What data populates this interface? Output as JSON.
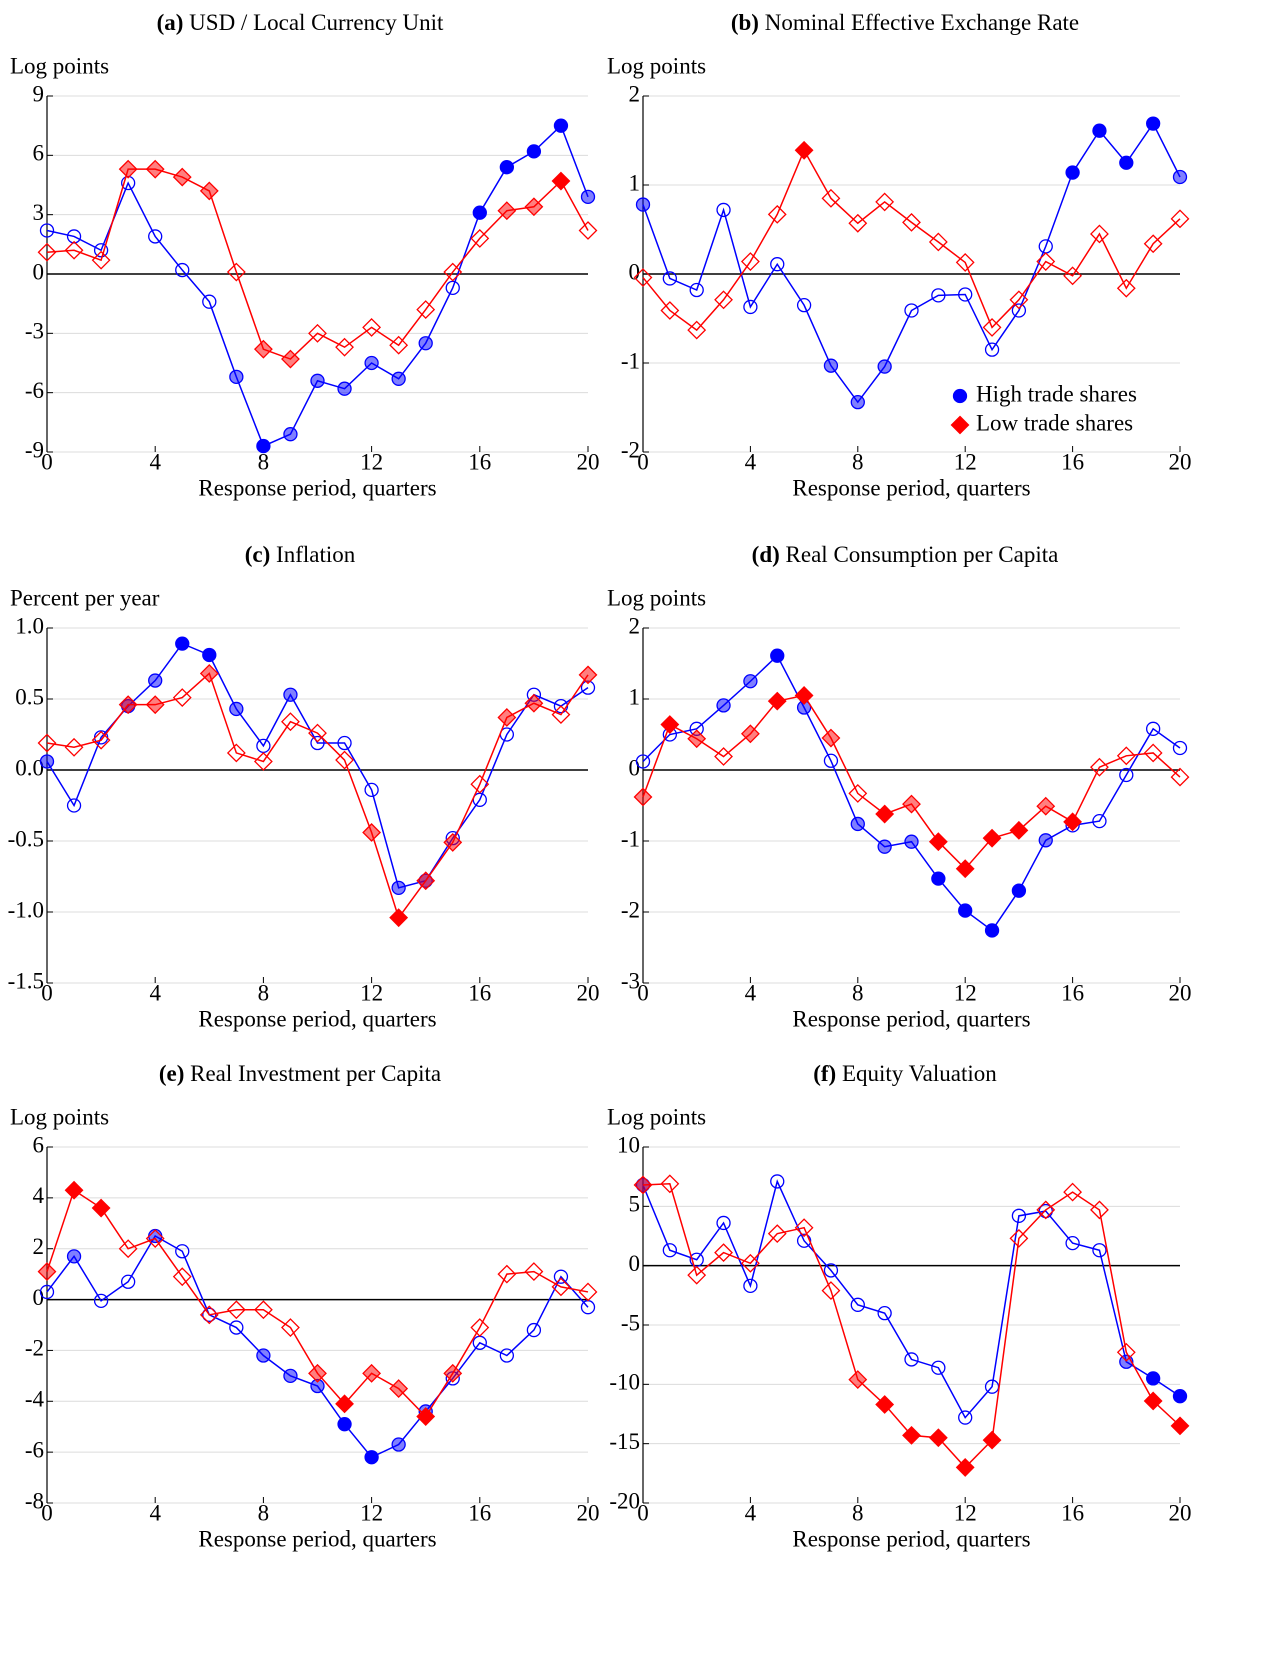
{
  "chart_data": [
    {
      "type": "line",
      "label": "(a)",
      "title": "USD / Local Currency Unit",
      "y_label": "Log points",
      "x_label": "Response period, quarters",
      "x": [
        0,
        1,
        2,
        3,
        4,
        5,
        6,
        7,
        8,
        9,
        10,
        11,
        12,
        13,
        14,
        15,
        16,
        17,
        18,
        19,
        20
      ],
      "xlim": [
        0,
        20
      ],
      "xticks": [
        0,
        4,
        8,
        12,
        16,
        20
      ],
      "ylim": [
        -9,
        9
      ],
      "yticks": [
        9,
        6,
        3,
        0,
        -3,
        -6,
        -9
      ],
      "grid": true,
      "series": [
        {
          "color": "#0000ff",
          "marker": "circle",
          "values": [
            2.2,
            1.9,
            1.2,
            4.6,
            1.9,
            0.2,
            -1.4,
            -5.2,
            -8.7,
            -8.1,
            -5.4,
            -5.8,
            -4.5,
            -5.3,
            -3.5,
            -0.7,
            3.1,
            5.4,
            6.2,
            7.5,
            3.9
          ],
          "marker_opacity": [
            0,
            0,
            0,
            0,
            0,
            0,
            0,
            0.5,
            1,
            0.5,
            0.5,
            0.5,
            0.5,
            0.5,
            0.5,
            0,
            1,
            1,
            1,
            1,
            0.5
          ]
        },
        {
          "color": "#ff0000",
          "marker": "diamond",
          "values": [
            1.1,
            1.2,
            0.7,
            5.3,
            5.3,
            4.9,
            4.2,
            0.1,
            -3.8,
            -4.3,
            -3.0,
            -3.7,
            -2.7,
            -3.6,
            -1.8,
            0.1,
            1.8,
            3.2,
            3.4,
            4.7,
            2.2
          ],
          "marker_opacity": [
            0,
            0,
            0,
            0.5,
            0.5,
            0.5,
            0.5,
            0,
            0.5,
            0.5,
            0,
            0,
            0,
            0,
            0,
            0,
            0,
            0.5,
            0.5,
            1,
            0
          ]
        }
      ]
    },
    {
      "type": "line",
      "label": "(b)",
      "title": "Nominal Effective Exchange Rate",
      "y_label": "Log points",
      "x_label": "Response period, quarters",
      "x": [
        0,
        1,
        2,
        3,
        4,
        5,
        6,
        7,
        8,
        9,
        10,
        11,
        12,
        13,
        14,
        15,
        16,
        17,
        18,
        19,
        20
      ],
      "xlim": [
        0,
        20
      ],
      "xticks": [
        0,
        4,
        8,
        12,
        16,
        20
      ],
      "ylim": [
        -2,
        2
      ],
      "yticks": [
        2,
        1,
        0,
        -1,
        -2
      ],
      "grid": true,
      "legend": "lower right",
      "series": [
        {
          "name": "High trade shares",
          "color": "#0000ff",
          "marker": "circle",
          "values": [
            0.78,
            -0.05,
            -0.18,
            0.72,
            -0.37,
            0.11,
            -0.35,
            -1.03,
            -1.44,
            -1.04,
            -0.41,
            -0.24,
            -0.23,
            -0.85,
            -0.41,
            0.31,
            1.14,
            1.61,
            1.25,
            1.69,
            1.09
          ],
          "marker_opacity": [
            0.5,
            0,
            0,
            0,
            0,
            0,
            0,
            0.5,
            0.5,
            0.5,
            0,
            0,
            0,
            0,
            0,
            0,
            1,
            1,
            1,
            1,
            0.5
          ]
        },
        {
          "name": "Low trade shares",
          "color": "#ff0000",
          "marker": "diamond",
          "values": [
            -0.04,
            -0.41,
            -0.63,
            -0.29,
            0.14,
            0.67,
            1.39,
            0.85,
            0.57,
            0.81,
            0.58,
            0.36,
            0.13,
            -0.6,
            -0.29,
            0.14,
            -0.02,
            0.45,
            -0.16,
            0.34,
            0.62
          ],
          "marker_opacity": [
            0,
            0,
            0,
            0,
            0,
            0,
            1,
            0,
            0,
            0,
            0,
            0,
            0,
            0,
            0,
            0,
            0,
            0,
            0,
            0,
            0
          ]
        }
      ]
    },
    {
      "type": "line",
      "label": "(c)",
      "title": "Inflation",
      "y_label": "Percent per year",
      "x_label": "Response period, quarters",
      "x": [
        0,
        1,
        2,
        3,
        4,
        5,
        6,
        7,
        8,
        9,
        10,
        11,
        12,
        13,
        14,
        15,
        16,
        17,
        18,
        19,
        20
      ],
      "xlim": [
        0,
        20
      ],
      "xticks": [
        0,
        4,
        8,
        12,
        16,
        20
      ],
      "ylim": [
        -1.5,
        1
      ],
      "yticks": [
        {
          "value": 1,
          "label": "1.0"
        },
        0.5,
        {
          "value": 0,
          "label": "0.0"
        },
        -0.5,
        {
          "value": -1,
          "label": "-1.0"
        },
        -1.5
      ],
      "grid": true,
      "series": [
        {
          "color": "#0000ff",
          "marker": "circle",
          "values": [
            0.06,
            -0.25,
            0.23,
            0.45,
            0.63,
            0.89,
            0.81,
            0.43,
            0.17,
            0.53,
            0.19,
            0.19,
            -0.14,
            -0.83,
            -0.78,
            -0.48,
            -0.21,
            0.25,
            0.53,
            0.45,
            0.58
          ],
          "marker_opacity": [
            0.5,
            0,
            0,
            0.5,
            0.5,
            1,
            1,
            0.5,
            0,
            0.5,
            0,
            0,
            0,
            0.5,
            0.5,
            0,
            0,
            0,
            0,
            0,
            0
          ]
        },
        {
          "color": "#ff0000",
          "marker": "diamond",
          "values": [
            0.19,
            0.16,
            0.21,
            0.46,
            0.46,
            0.51,
            0.68,
            0.12,
            0.06,
            0.34,
            0.26,
            0.07,
            -0.44,
            -1.04,
            -0.78,
            -0.51,
            -0.1,
            0.37,
            0.47,
            0.39,
            0.67
          ],
          "marker_opacity": [
            0,
            0,
            0,
            0.5,
            0.5,
            0,
            0.5,
            0,
            0,
            0,
            0,
            0,
            0.5,
            1,
            0.5,
            0.5,
            0,
            0.5,
            0.5,
            0,
            0.5
          ]
        }
      ]
    },
    {
      "type": "line",
      "label": "(d)",
      "title": "Real Consumption per Capita",
      "y_label": "Log points",
      "x_label": "Response period, quarters",
      "x": [
        0,
        1,
        2,
        3,
        4,
        5,
        6,
        7,
        8,
        9,
        10,
        11,
        12,
        13,
        14,
        15,
        16,
        17,
        18,
        19,
        20
      ],
      "xlim": [
        0,
        20
      ],
      "xticks": [
        0,
        4,
        8,
        12,
        16,
        20
      ],
      "ylim": [
        -3,
        2
      ],
      "yticks": [
        2,
        1,
        0,
        -1,
        -2,
        -3
      ],
      "grid": true,
      "series": [
        {
          "color": "#0000ff",
          "marker": "circle",
          "values": [
            0.12,
            0.5,
            0.58,
            0.91,
            1.25,
            1.61,
            0.88,
            0.13,
            -0.76,
            -1.08,
            -1.01,
            -1.53,
            -1.98,
            -2.26,
            -1.7,
            -0.99,
            -0.78,
            -0.72,
            -0.07,
            0.58,
            0.31
          ],
          "marker_opacity": [
            0,
            0,
            0,
            0.5,
            0.5,
            1,
            0.5,
            0,
            0.5,
            0.5,
            0.5,
            1,
            1,
            1,
            1,
            0.5,
            0,
            0,
            0,
            0,
            0
          ]
        },
        {
          "color": "#ff0000",
          "marker": "diamond",
          "values": [
            -0.38,
            0.64,
            0.44,
            0.19,
            0.51,
            0.97,
            1.05,
            0.45,
            -0.33,
            -0.62,
            -0.48,
            -1.01,
            -1.39,
            -0.96,
            -0.85,
            -0.51,
            -0.73,
            0.04,
            0.2,
            0.24,
            -0.1
          ],
          "marker_opacity": [
            0.5,
            1,
            0.5,
            0,
            0.5,
            1,
            1,
            0.5,
            0,
            1,
            0.5,
            1,
            1,
            1,
            1,
            0.5,
            1,
            0,
            0,
            0,
            0
          ]
        }
      ]
    },
    {
      "type": "line",
      "label": "(e)",
      "title": "Real Investment per Capita",
      "y_label": "Log points",
      "x_label": "Response period, quarters",
      "x": [
        0,
        1,
        2,
        3,
        4,
        5,
        6,
        7,
        8,
        9,
        10,
        11,
        12,
        13,
        14,
        15,
        16,
        17,
        18,
        19,
        20
      ],
      "xlim": [
        0,
        20
      ],
      "xticks": [
        0,
        4,
        8,
        12,
        16,
        20
      ],
      "ylim": [
        -8,
        6
      ],
      "yticks": [
        6,
        4,
        2,
        0,
        -2,
        -4,
        -6,
        -8
      ],
      "grid": true,
      "series": [
        {
          "color": "#0000ff",
          "marker": "circle",
          "values": [
            0.3,
            1.7,
            -0.05,
            0.7,
            2.5,
            1.9,
            -0.6,
            -1.1,
            -2.2,
            -3.0,
            -3.4,
            -4.9,
            -6.2,
            -5.7,
            -4.4,
            -3.1,
            -1.7,
            -2.2,
            -1.2,
            0.9,
            -0.3
          ],
          "marker_opacity": [
            0,
            0.5,
            0,
            0,
            0.5,
            0,
            0,
            0,
            0.5,
            0.5,
            0.5,
            1,
            1,
            0.5,
            0.5,
            0,
            0,
            0,
            0,
            0,
            0
          ]
        },
        {
          "color": "#ff0000",
          "marker": "diamond",
          "values": [
            1.1,
            4.3,
            3.6,
            2.0,
            2.4,
            0.9,
            -0.6,
            -0.4,
            -0.4,
            -1.1,
            -2.9,
            -4.1,
            -2.9,
            -3.5,
            -4.6,
            -2.9,
            -1.1,
            1.0,
            1.1,
            0.5,
            0.3
          ],
          "marker_opacity": [
            0.5,
            1,
            1,
            0,
            0,
            0,
            0,
            0,
            0,
            0,
            0.5,
            1,
            0.5,
            0.5,
            1,
            0.5,
            0,
            0,
            0,
            0,
            0
          ]
        }
      ]
    },
    {
      "type": "line",
      "label": "(f)",
      "title": "Equity Valuation",
      "y_label": "Log points",
      "x_label": "Response period, quarters",
      "x": [
        0,
        1,
        2,
        3,
        4,
        5,
        6,
        7,
        8,
        9,
        10,
        11,
        12,
        13,
        14,
        15,
        16,
        17,
        18,
        19,
        20
      ],
      "xlim": [
        0,
        20
      ],
      "xticks": [
        0,
        4,
        8,
        12,
        16,
        20
      ],
      "ylim": [
        -20,
        10
      ],
      "yticks": [
        10,
        5,
        0,
        -5,
        -10,
        -15,
        -20
      ],
      "grid": true,
      "series": [
        {
          "color": "#0000ff",
          "marker": "circle",
          "values": [
            6.8,
            1.3,
            0.5,
            3.6,
            -1.7,
            7.1,
            2.1,
            -0.4,
            -3.3,
            -4.0,
            -7.9,
            -8.6,
            -12.8,
            -10.2,
            4.2,
            4.6,
            1.9,
            1.3,
            -8.1,
            -9.5,
            -11.0
          ],
          "marker_opacity": [
            0.5,
            0,
            0,
            0,
            0,
            0,
            0,
            0,
            0,
            0,
            0,
            0,
            0,
            0,
            0,
            0,
            0,
            0,
            0.5,
            1,
            1
          ]
        },
        {
          "color": "#ff0000",
          "marker": "diamond",
          "values": [
            6.8,
            6.9,
            -0.8,
            1.1,
            0.2,
            2.7,
            3.2,
            -2.1,
            -9.6,
            -11.7,
            -14.3,
            -14.5,
            -17.0,
            -14.7,
            2.3,
            4.7,
            6.2,
            4.7,
            -7.3,
            -11.4,
            -13.5
          ],
          "marker_opacity": [
            0.5,
            0,
            0,
            0,
            0,
            0,
            0,
            0,
            0.5,
            1,
            1,
            1,
            1,
            1,
            0,
            0,
            0,
            0,
            0,
            1,
            1
          ]
        }
      ]
    }
  ]
}
